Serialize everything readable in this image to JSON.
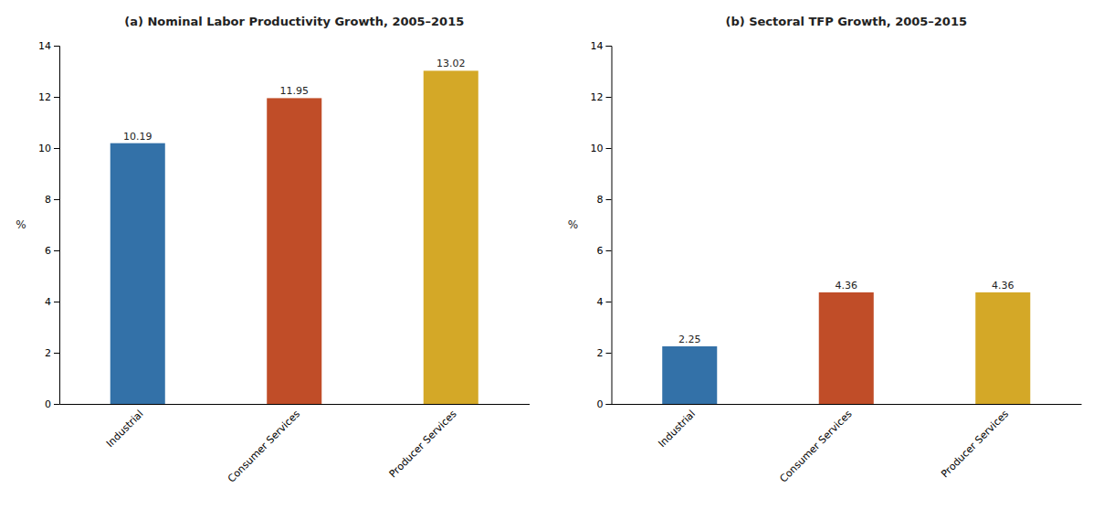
{
  "chart_data": [
    {
      "type": "bar",
      "title": "(a) Nominal Labor Productivity Growth, 2005–2015",
      "categories": [
        "Industrial",
        "Consumer Services",
        "Producer Services"
      ],
      "values": [
        10.19,
        11.95,
        13.02
      ],
      "colors": [
        "#3371A8",
        "#C04D28",
        "#D4A827"
      ],
      "ylabel": "%",
      "ylim": [
        0,
        14
      ],
      "yticks": [
        0,
        2,
        4,
        6,
        8,
        10,
        12,
        14
      ],
      "grid": false,
      "data_labels": true
    },
    {
      "type": "bar",
      "title": "(b) Sectoral TFP Growth, 2005–2015",
      "categories": [
        "Industrial",
        "Consumer Services",
        "Producer Services"
      ],
      "values": [
        2.25,
        4.36,
        4.36
      ],
      "colors": [
        "#3371A8",
        "#C04D28",
        "#D4A827"
      ],
      "ylabel": "%",
      "ylim": [
        0,
        14
      ],
      "yticks": [
        0,
        2,
        4,
        6,
        8,
        10,
        12,
        14
      ],
      "grid": false,
      "data_labels": true
    }
  ]
}
